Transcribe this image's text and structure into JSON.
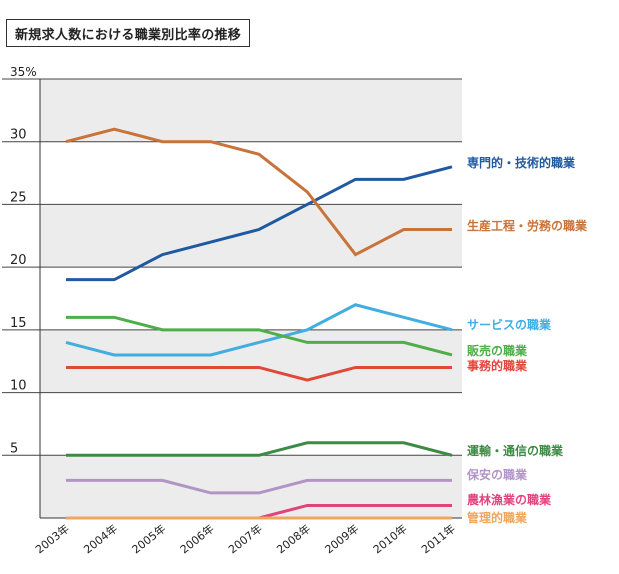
{
  "chart_data": {
    "type": "line",
    "title": "新規求人数における職業別比率の推移",
    "categories": [
      "2003年",
      "2004年",
      "2005年",
      "2006年",
      "2007年",
      "2008年",
      "2009年",
      "2010年",
      "2011年"
    ],
    "y_ticks": [
      "35%",
      "30",
      "25",
      "20",
      "15",
      "10",
      "5"
    ],
    "ylim": [
      0,
      35
    ],
    "series": [
      {
        "name": "専門的・技術的職業",
        "color": "#1f5aa1",
        "values": [
          19,
          19,
          21,
          22,
          23,
          25,
          27,
          27,
          28
        ]
      },
      {
        "name": "生産工程・労務の職業",
        "color": "#c8733a",
        "values": [
          30,
          31,
          30,
          30,
          29,
          26,
          21,
          23,
          23
        ]
      },
      {
        "name": "サービスの職業",
        "color": "#41ade0",
        "values": [
          14,
          13,
          13,
          13,
          14,
          15,
          17,
          16,
          15
        ]
      },
      {
        "name": "販売の職業",
        "color": "#4fae49",
        "values": [
          16,
          16,
          15,
          15,
          15,
          14,
          14,
          14,
          13
        ]
      },
      {
        "name": "事務的職業",
        "color": "#e0483a",
        "values": [
          12,
          12,
          12,
          12,
          12,
          11,
          12,
          12,
          12
        ]
      },
      {
        "name": "運輸・通信の職業",
        "color": "#3c8b43",
        "values": [
          5,
          5,
          5,
          5,
          5,
          6,
          6,
          6,
          5
        ]
      },
      {
        "name": "保安の職業",
        "color": "#b295c6",
        "values": [
          3,
          3,
          3,
          2,
          2,
          3,
          3,
          3,
          3
        ]
      },
      {
        "name": "農林漁業の職業",
        "color": "#e1447d",
        "values": [
          0,
          0,
          0,
          0,
          0,
          1,
          1,
          1,
          1
        ]
      },
      {
        "name": "管理的職業",
        "color": "#f0a65c",
        "values": [
          0,
          0,
          0,
          0,
          0,
          0,
          0,
          0,
          0
        ]
      }
    ]
  }
}
